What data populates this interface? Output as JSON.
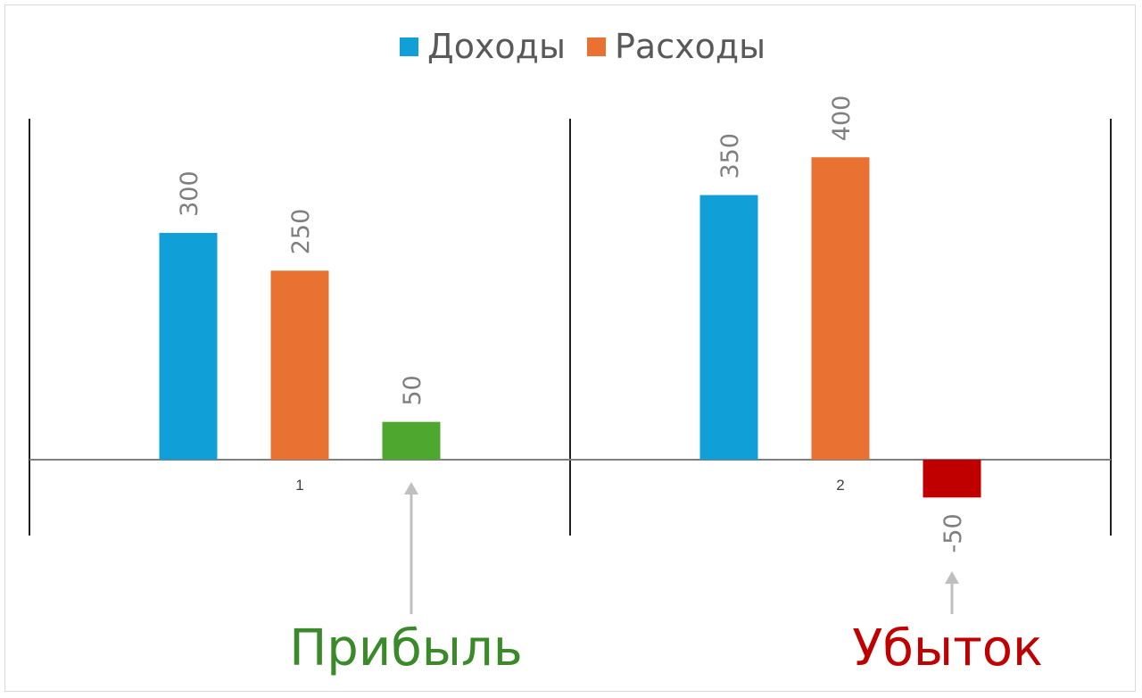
{
  "chart_data": {
    "type": "bar",
    "categories": [
      "1",
      "2"
    ],
    "series": [
      {
        "name": "Доходы",
        "values": [
          300,
          350
        ],
        "color": "#119fd8"
      },
      {
        "name": "Расходы",
        "values": [
          250,
          400
        ],
        "color": "#e97132"
      }
    ],
    "result": {
      "values": [
        50,
        -50
      ],
      "colors": [
        "#4ea72e",
        "#c00000"
      ]
    },
    "ylim": [
      -100,
      450
    ],
    "grid": false,
    "legend_position": "top-center",
    "annotations": [
      {
        "text": "Прибыль",
        "color": "#3b8a2a",
        "target": "1"
      },
      {
        "text": "Убыток",
        "color": "#c00000",
        "target": "2"
      }
    ],
    "data_label_color": "#7f7f7f",
    "axis_color": "#7f7f7f",
    "arrow_color": "#bfbfbf"
  }
}
